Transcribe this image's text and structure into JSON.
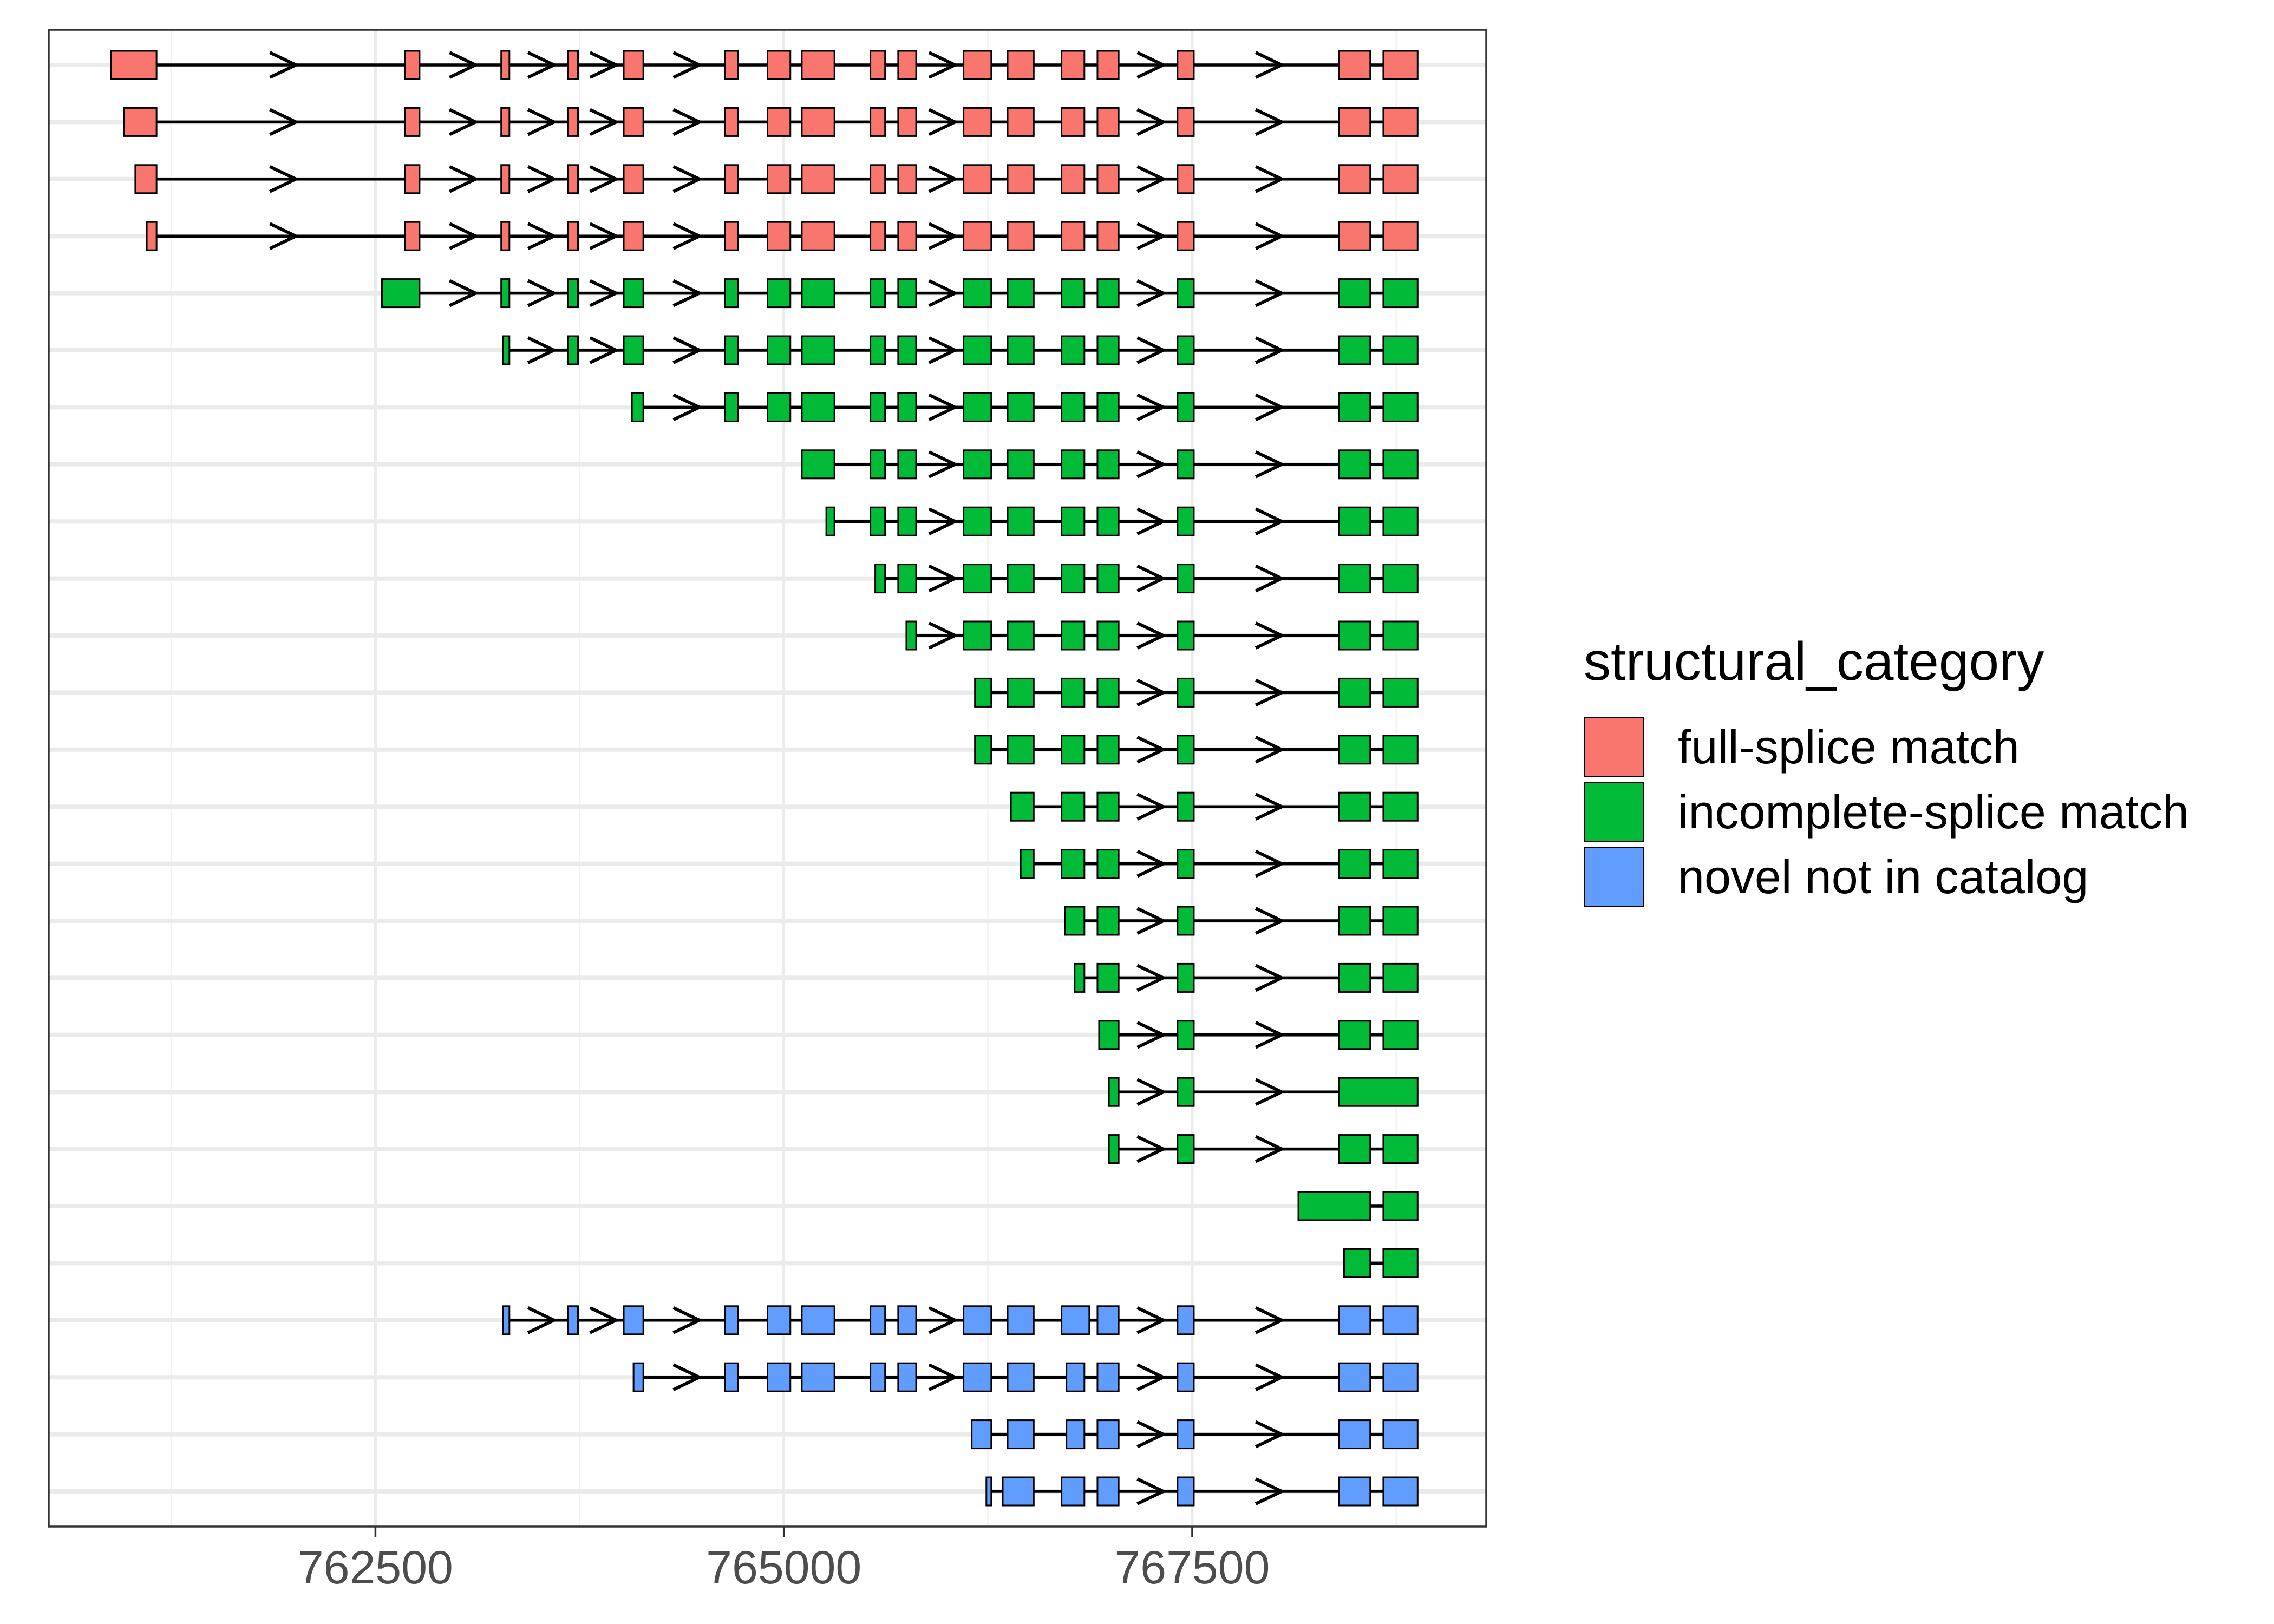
{
  "chart_data": {
    "type": "gene-structure",
    "title": "",
    "xlabel": "",
    "ylabel": "",
    "xlim": [
      760500,
      769300
    ],
    "x_ticks": [
      762500,
      765000,
      767500
    ],
    "x_tick_labels": [
      "762500",
      "765000",
      "767500"
    ],
    "strand": "+",
    "grid": true,
    "legend": {
      "title": "structural_category",
      "placement": "right",
      "entries": [
        {
          "label": "full-splice match",
          "color": "#F8766D"
        },
        {
          "label": "incomplete-splice match",
          "color": "#00BA38"
        },
        {
          "label": "novel not in catalog",
          "color": "#619CFF"
        }
      ]
    },
    "transcripts": [
      {
        "category": "full-splice match",
        "exons": [
          [
            760880,
            761160
          ],
          [
            762680,
            762770
          ],
          [
            763270,
            763320
          ],
          [
            763680,
            763740
          ],
          [
            764020,
            764140
          ],
          [
            764640,
            764720
          ],
          [
            764900,
            765040
          ],
          [
            765110,
            765310
          ],
          [
            765530,
            765620
          ],
          [
            765700,
            765810
          ],
          [
            766100,
            766270
          ],
          [
            766370,
            766530
          ],
          [
            766700,
            766840
          ],
          [
            766920,
            767050
          ],
          [
            767410,
            767510
          ],
          [
            768400,
            768590
          ],
          [
            768670,
            768880
          ]
        ]
      },
      {
        "category": "full-splice match",
        "exons": [
          [
            760960,
            761160
          ],
          [
            762680,
            762770
          ],
          [
            763270,
            763320
          ],
          [
            763680,
            763740
          ],
          [
            764020,
            764140
          ],
          [
            764640,
            764720
          ],
          [
            764900,
            765040
          ],
          [
            765110,
            765310
          ],
          [
            765530,
            765620
          ],
          [
            765700,
            765810
          ],
          [
            766100,
            766270
          ],
          [
            766370,
            766530
          ],
          [
            766700,
            766840
          ],
          [
            766920,
            767050
          ],
          [
            767410,
            767510
          ],
          [
            768400,
            768590
          ],
          [
            768670,
            768880
          ]
        ]
      },
      {
        "category": "full-splice match",
        "exons": [
          [
            761030,
            761160
          ],
          [
            762680,
            762770
          ],
          [
            763270,
            763320
          ],
          [
            763680,
            763740
          ],
          [
            764020,
            764140
          ],
          [
            764640,
            764720
          ],
          [
            764900,
            765040
          ],
          [
            765110,
            765310
          ],
          [
            765530,
            765620
          ],
          [
            765700,
            765810
          ],
          [
            766100,
            766270
          ],
          [
            766370,
            766530
          ],
          [
            766700,
            766840
          ],
          [
            766920,
            767050
          ],
          [
            767410,
            767510
          ],
          [
            768400,
            768590
          ],
          [
            768670,
            768880
          ]
        ]
      },
      {
        "category": "full-splice match",
        "exons": [
          [
            761100,
            761160
          ],
          [
            762680,
            762770
          ],
          [
            763270,
            763320
          ],
          [
            763680,
            763740
          ],
          [
            764020,
            764140
          ],
          [
            764640,
            764720
          ],
          [
            764900,
            765040
          ],
          [
            765110,
            765310
          ],
          [
            765530,
            765620
          ],
          [
            765700,
            765810
          ],
          [
            766100,
            766270
          ],
          [
            766370,
            766530
          ],
          [
            766700,
            766840
          ],
          [
            766920,
            767050
          ],
          [
            767410,
            767510
          ],
          [
            768400,
            768590
          ],
          [
            768670,
            768880
          ]
        ]
      },
      {
        "category": "incomplete-splice match",
        "exons": [
          [
            762540,
            762770
          ],
          [
            763270,
            763320
          ],
          [
            763680,
            763740
          ],
          [
            764020,
            764140
          ],
          [
            764640,
            764720
          ],
          [
            764900,
            765040
          ],
          [
            765110,
            765310
          ],
          [
            765530,
            765620
          ],
          [
            765700,
            765810
          ],
          [
            766100,
            766270
          ],
          [
            766370,
            766530
          ],
          [
            766700,
            766840
          ],
          [
            766920,
            767050
          ],
          [
            767410,
            767510
          ],
          [
            768400,
            768590
          ],
          [
            768670,
            768880
          ]
        ]
      },
      {
        "category": "incomplete-splice match",
        "exons": [
          [
            763280,
            763320
          ],
          [
            763680,
            763740
          ],
          [
            764020,
            764140
          ],
          [
            764640,
            764720
          ],
          [
            764900,
            765040
          ],
          [
            765110,
            765310
          ],
          [
            765530,
            765620
          ],
          [
            765700,
            765810
          ],
          [
            766100,
            766270
          ],
          [
            766370,
            766530
          ],
          [
            766700,
            766840
          ],
          [
            766920,
            767050
          ],
          [
            767410,
            767510
          ],
          [
            768400,
            768590
          ],
          [
            768670,
            768880
          ]
        ]
      },
      {
        "category": "incomplete-splice match",
        "exons": [
          [
            764070,
            764140
          ],
          [
            764640,
            764720
          ],
          [
            764900,
            765040
          ],
          [
            765110,
            765310
          ],
          [
            765530,
            765620
          ],
          [
            765700,
            765810
          ],
          [
            766100,
            766270
          ],
          [
            766370,
            766530
          ],
          [
            766700,
            766840
          ],
          [
            766920,
            767050
          ],
          [
            767410,
            767510
          ],
          [
            768400,
            768590
          ],
          [
            768670,
            768880
          ]
        ]
      },
      {
        "category": "incomplete-splice match",
        "exons": [
          [
            765110,
            765310
          ],
          [
            765530,
            765620
          ],
          [
            765700,
            765810
          ],
          [
            766100,
            766270
          ],
          [
            766370,
            766530
          ],
          [
            766700,
            766840
          ],
          [
            766920,
            767050
          ],
          [
            767410,
            767510
          ],
          [
            768400,
            768590
          ],
          [
            768670,
            768880
          ]
        ]
      },
      {
        "category": "incomplete-splice match",
        "exons": [
          [
            765260,
            765310
          ],
          [
            765530,
            765620
          ],
          [
            765700,
            765810
          ],
          [
            766100,
            766270
          ],
          [
            766370,
            766530
          ],
          [
            766700,
            766840
          ],
          [
            766920,
            767050
          ],
          [
            767410,
            767510
          ],
          [
            768400,
            768590
          ],
          [
            768670,
            768880
          ]
        ]
      },
      {
        "category": "incomplete-splice match",
        "exons": [
          [
            765560,
            765620
          ],
          [
            765700,
            765810
          ],
          [
            766100,
            766270
          ],
          [
            766370,
            766530
          ],
          [
            766700,
            766840
          ],
          [
            766920,
            767050
          ],
          [
            767410,
            767510
          ],
          [
            768400,
            768590
          ],
          [
            768670,
            768880
          ]
        ]
      },
      {
        "category": "incomplete-splice match",
        "exons": [
          [
            765750,
            765810
          ],
          [
            766100,
            766270
          ],
          [
            766370,
            766530
          ],
          [
            766700,
            766840
          ],
          [
            766920,
            767050
          ],
          [
            767410,
            767510
          ],
          [
            768400,
            768590
          ],
          [
            768670,
            768880
          ]
        ]
      },
      {
        "category": "incomplete-splice match",
        "exons": [
          [
            766170,
            766270
          ],
          [
            766370,
            766530
          ],
          [
            766700,
            766840
          ],
          [
            766920,
            767050
          ],
          [
            767410,
            767510
          ],
          [
            768400,
            768590
          ],
          [
            768670,
            768880
          ]
        ]
      },
      {
        "category": "incomplete-splice match",
        "exons": [
          [
            766170,
            766270
          ],
          [
            766370,
            766530
          ],
          [
            766700,
            766840
          ],
          [
            766920,
            767050
          ],
          [
            767410,
            767510
          ],
          [
            768400,
            768590
          ],
          [
            768670,
            768880
          ]
        ]
      },
      {
        "category": "incomplete-splice match",
        "exons": [
          [
            766390,
            766530
          ],
          [
            766700,
            766840
          ],
          [
            766920,
            767050
          ],
          [
            767410,
            767510
          ],
          [
            768400,
            768590
          ],
          [
            768670,
            768880
          ]
        ]
      },
      {
        "category": "incomplete-splice match",
        "exons": [
          [
            766450,
            766530
          ],
          [
            766700,
            766840
          ],
          [
            766920,
            767050
          ],
          [
            767410,
            767510
          ],
          [
            768400,
            768590
          ],
          [
            768670,
            768880
          ]
        ]
      },
      {
        "category": "incomplete-splice match",
        "exons": [
          [
            766720,
            766840
          ],
          [
            766920,
            767050
          ],
          [
            767410,
            767510
          ],
          [
            768400,
            768590
          ],
          [
            768670,
            768880
          ]
        ]
      },
      {
        "category": "incomplete-splice match",
        "exons": [
          [
            766780,
            766840
          ],
          [
            766920,
            767050
          ],
          [
            767410,
            767510
          ],
          [
            768400,
            768590
          ],
          [
            768670,
            768880
          ]
        ]
      },
      {
        "category": "incomplete-splice match",
        "exons": [
          [
            766930,
            767050
          ],
          [
            767410,
            767510
          ],
          [
            768400,
            768590
          ],
          [
            768670,
            768880
          ]
        ]
      },
      {
        "category": "incomplete-splice match",
        "exons": [
          [
            766990,
            767050
          ],
          [
            767410,
            767510
          ],
          [
            768400,
            768880
          ]
        ]
      },
      {
        "category": "incomplete-splice match",
        "exons": [
          [
            766990,
            767050
          ],
          [
            767410,
            767510
          ],
          [
            768400,
            768590
          ],
          [
            768670,
            768880
          ]
        ]
      },
      {
        "category": "incomplete-splice match",
        "exons": [
          [
            768150,
            768590
          ],
          [
            768670,
            768880
          ]
        ]
      },
      {
        "category": "incomplete-splice match",
        "exons": [
          [
            768430,
            768590
          ],
          [
            768670,
            768880
          ]
        ]
      },
      {
        "category": "novel not in catalog",
        "exons": [
          [
            763280,
            763320
          ],
          [
            763680,
            763740
          ],
          [
            764020,
            764140
          ],
          [
            764640,
            764720
          ],
          [
            764900,
            765040
          ],
          [
            765110,
            765310
          ],
          [
            765530,
            765620
          ],
          [
            765700,
            765810
          ],
          [
            766100,
            766270
          ],
          [
            766370,
            766530
          ],
          [
            766700,
            766870
          ],
          [
            766920,
            767050
          ],
          [
            767410,
            767510
          ],
          [
            768400,
            768590
          ],
          [
            768670,
            768880
          ]
        ]
      },
      {
        "category": "novel not in catalog",
        "exons": [
          [
            764080,
            764140
          ],
          [
            764640,
            764720
          ],
          [
            764900,
            765040
          ],
          [
            765110,
            765310
          ],
          [
            765530,
            765620
          ],
          [
            765700,
            765810
          ],
          [
            766100,
            766270
          ],
          [
            766370,
            766530
          ],
          [
            766730,
            766840
          ],
          [
            766920,
            767050
          ],
          [
            767410,
            767510
          ],
          [
            768400,
            768590
          ],
          [
            768670,
            768880
          ]
        ]
      },
      {
        "category": "novel not in catalog",
        "exons": [
          [
            766150,
            766270
          ],
          [
            766370,
            766530
          ],
          [
            766730,
            766840
          ],
          [
            766920,
            767050
          ],
          [
            767410,
            767510
          ],
          [
            768400,
            768590
          ],
          [
            768670,
            768880
          ]
        ]
      },
      {
        "category": "novel not in catalog",
        "exons": [
          [
            766240,
            766270
          ],
          [
            766340,
            766530
          ],
          [
            766700,
            766840
          ],
          [
            766920,
            767050
          ],
          [
            767410,
            767510
          ],
          [
            768400,
            768590
          ],
          [
            768670,
            768880
          ]
        ]
      }
    ]
  }
}
